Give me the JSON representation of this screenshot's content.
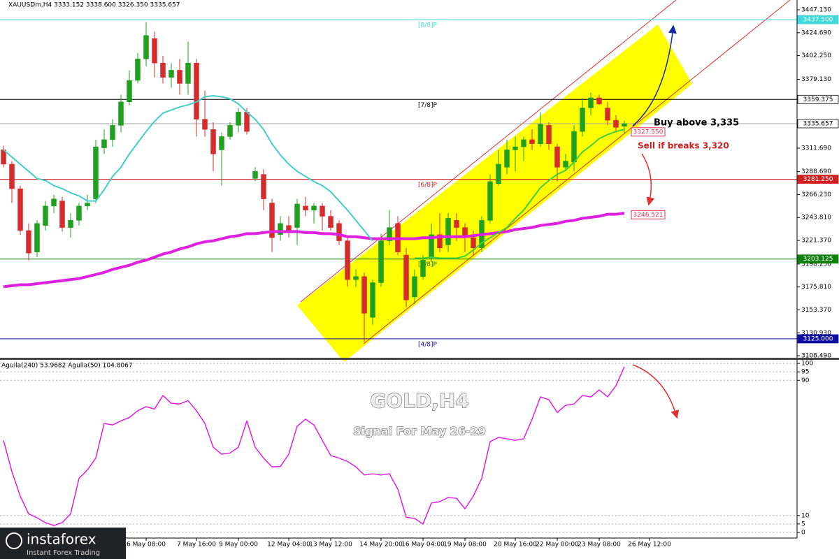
{
  "chart_data": [
    {
      "type": "candlestick",
      "title": "XAUUSDm,H4  3333.152 3338.600 3326.350 3335.657",
      "categories": [
        null,
        null,
        null,
        null,
        null,
        null,
        null,
        null,
        null,
        null,
        null,
        null,
        null,
        null,
        null,
        null,
        null,
        "6 May 08:00",
        null,
        null,
        null,
        null,
        null,
        "7 May 16:00",
        null,
        null,
        null,
        null,
        "9 May 00:00",
        null,
        null,
        null,
        null,
        null,
        "12 May 04:00",
        null,
        null,
        null,
        null,
        "13 May 12:00",
        null,
        null,
        null,
        null,
        null,
        "14 May 20:00",
        null,
        null,
        null,
        null,
        "16 May 04:00",
        null,
        null,
        null,
        null,
        "19 May 08:00",
        null,
        null,
        null,
        null,
        null,
        "20 May 16:00",
        null,
        null,
        null,
        null,
        "22 May 00:00",
        null,
        null,
        null,
        null,
        "23 May 08:00",
        null,
        null,
        null,
        null,
        null,
        "26 May 12:00"
      ],
      "open": [
        3310,
        3296,
        3272,
        3231,
        3210,
        3236,
        3255,
        3260,
        3234,
        3241,
        3255,
        3262,
        3312,
        3320,
        3334,
        3357,
        3378,
        3399,
        3419,
        3395,
        3381,
        3388,
        3375,
        3395,
        3340,
        3330,
        3310,
        3323,
        3334,
        3347,
        3282,
        3286,
        3258,
        3227,
        3236,
        3234,
        3255,
        3251,
        3255,
        3245,
        3238,
        3221,
        3183,
        3186,
        3146,
        3180,
        3221,
        3238,
        3207,
        3166,
        3186,
        3204,
        3227,
        3217,
        3241,
        3234,
        3224,
        3214,
        3241,
        3277,
        3293,
        3310,
        3313,
        3320,
        3316,
        3334,
        3313,
        3293,
        3298,
        3328,
        3351,
        3361,
        3351,
        3339,
        3333.152,
        null,
        null,
        null
      ],
      "high": [
        3314,
        3299,
        3275,
        3238,
        3241,
        3260,
        3266,
        3264,
        3248,
        3258,
        3266,
        3320,
        3330,
        3340,
        3364,
        3388,
        3405,
        3435,
        3426,
        3402,
        3395,
        3399,
        3416,
        3399,
        3368,
        3337,
        3327,
        3337,
        3351,
        3351,
        3293,
        3291,
        3262,
        3245,
        3245,
        3262,
        3264,
        3258,
        3258,
        3251,
        3241,
        3224,
        3193,
        3190,
        3183,
        3228,
        3251,
        3245,
        3214,
        3193,
        3207,
        3238,
        3248,
        3248,
        3248,
        3238,
        3231,
        3245,
        3286,
        3310,
        3320,
        3323,
        3323,
        3330,
        3347,
        3337,
        3316,
        3306,
        3334,
        3361,
        3366,
        3364,
        3357,
        3344,
        3338.6,
        null,
        null,
        null
      ],
      "low": [
        3293,
        3258,
        3227,
        3202,
        3205,
        3231,
        3248,
        3230,
        3224,
        3236,
        3251,
        3258,
        3306,
        3313,
        3327,
        3354,
        3375,
        3392,
        3381,
        3375,
        3371,
        3364,
        3364,
        3323,
        3323,
        3289,
        3275,
        3320,
        3327,
        3325,
        3279,
        3251,
        3210,
        3221,
        3224,
        3217,
        3245,
        3238,
        3231,
        3231,
        3217,
        3176,
        3176,
        3122,
        3139,
        3176,
        3217,
        3207,
        3156,
        3159,
        3183,
        3200,
        3210,
        3210,
        3221,
        3210,
        3207,
        3210,
        3238,
        3275,
        3286,
        3289,
        3299,
        3310,
        3313,
        3310,
        3279,
        3289,
        3289,
        3323,
        3344,
        3354,
        3334,
        3327,
        3326.35,
        null,
        null,
        null
      ],
      "close": [
        3296,
        3272,
        3231,
        3209,
        3238,
        3255,
        3262,
        3234,
        3241,
        3255,
        3258,
        3313,
        3320,
        3334,
        3357,
        3378,
        3399,
        3422,
        3395,
        3381,
        3388,
        3375,
        3395,
        3340,
        3330,
        3306,
        3323,
        3334,
        3347,
        3328,
        3289,
        3262,
        3224,
        3238,
        3231,
        3257,
        3251,
        3255,
        3245,
        3234,
        3221,
        3183,
        3186,
        3150,
        3180,
        3221,
        3234,
        3210,
        3163,
        3186,
        3202,
        3227,
        3214,
        3243,
        3234,
        3224,
        3214,
        3241,
        3279,
        3296,
        3310,
        3313,
        3320,
        3316,
        3335,
        3316,
        3293,
        3299,
        3328,
        3351,
        3361,
        3355,
        3339,
        3332,
        3335.657,
        null,
        null,
        null
      ],
      "up_color": "#1fa01f",
      "down_color": "#d92b2b",
      "series": [
        {
          "color": "#e020e0",
          "width": 4,
          "values": [
            3176,
            3177,
            3178,
            3178,
            3179,
            3180,
            3181,
            3182,
            3183,
            3184,
            3186,
            3188,
            3190,
            3193,
            3195,
            3197,
            3200,
            3202,
            3205,
            3208,
            3210,
            3213,
            3215,
            3218,
            3220,
            3221,
            3223,
            3225,
            3226,
            3228,
            3228,
            3229,
            3230,
            3230,
            3230,
            3230,
            3229,
            3229,
            3228,
            3228,
            3227,
            3225,
            3225,
            3224,
            3223,
            3223,
            3223,
            3223,
            3223,
            3223,
            3224,
            3224,
            3225,
            3225,
            3225,
            3225,
            3226,
            3227,
            3228,
            3229,
            3230,
            3232,
            3233,
            3234,
            3236,
            3237,
            3238,
            3240,
            3241,
            3243,
            3244,
            3245,
            3247,
            3247,
            3248,
            null,
            null,
            null
          ]
        },
        {
          "color": "#40d0c8",
          "width": 2,
          "values": [
            3310,
            3303,
            3296,
            3289,
            3282,
            3280,
            3275,
            3272,
            3268,
            3265,
            3260,
            3260,
            3271,
            3284,
            3293,
            3306,
            3317,
            3328,
            3338,
            3346,
            3349,
            3352,
            3354,
            3357,
            3362,
            3363,
            3362,
            3360,
            3355,
            3347,
            3340,
            3330,
            3316,
            3305,
            3296,
            3289,
            3284,
            3279,
            3275,
            3269,
            3260,
            3251,
            3241,
            3231,
            3221,
            null,
            null,
            null,
            null,
            null,
            null,
            null,
            null,
            null,
            null,
            null,
            null,
            null,
            null,
            null,
            null,
            null,
            null,
            null,
            null,
            null,
            null,
            null,
            null,
            null,
            null,
            null,
            null,
            null,
            null,
            null,
            null,
            null
          ]
        },
        {
          "color": "#40d040",
          "width": 2,
          "values": [
            null,
            null,
            null,
            null,
            null,
            null,
            null,
            null,
            null,
            null,
            null,
            null,
            null,
            null,
            null,
            null,
            null,
            null,
            null,
            null,
            null,
            null,
            null,
            null,
            null,
            null,
            null,
            null,
            null,
            null,
            null,
            null,
            null,
            null,
            null,
            null,
            null,
            null,
            null,
            null,
            null,
            null,
            null,
            null,
            null,
            null,
            null,
            null,
            null,
            3204,
            3204,
            3205,
            3204,
            3204,
            3204,
            3206,
            3212,
            3219,
            3224,
            3229,
            3234,
            3243,
            3251,
            3262,
            3273,
            3280,
            3286,
            3290,
            3298,
            3308,
            3314,
            3321,
            3325,
            3328,
            3330,
            null,
            null,
            null
          ]
        }
      ],
      "ylim": [
        3105.8,
        3453.3
      ],
      "yticks": [
        {
          "value": 3447.13,
          "label": "3447.130"
        },
        {
          "value": 3424.69,
          "label": "3424.690"
        },
        {
          "value": 3402.25,
          "label": "3402.250"
        },
        {
          "value": 3379.13,
          "label": "3379.130"
        },
        {
          "value": 3311.69,
          "label": "3311.690"
        },
        {
          "value": 3288.69,
          "label": "3288.690"
        },
        {
          "value": 3266.23,
          "label": "3266.230"
        },
        {
          "value": 3243.81,
          "label": "3243.810"
        },
        {
          "value": 3221.37,
          "label": "3221.370"
        },
        {
          "value": 3198.25,
          "label": "3198.250"
        },
        {
          "value": 3175.81,
          "label": "3175.810"
        },
        {
          "value": 3153.37,
          "label": "3153.370"
        },
        {
          "value": 3130.93,
          "label": "3130.930"
        },
        {
          "value": 3108.49,
          "label": "3108.490"
        }
      ],
      "levels": [
        {
          "label": "[8/8]P",
          "value": 3437.5,
          "value_label": "3437.500",
          "color": "#40d8d8",
          "tag": "filled"
        },
        {
          "label": "[7/8]P",
          "value": 3359.375,
          "value_label": "3359.375",
          "color": "#000000",
          "tag": "outline"
        },
        {
          "value": 3335.657,
          "value_label": "3335.657",
          "color": "#a0a0a0",
          "tag": "outline"
        },
        {
          "label": "[6/8]P",
          "value": 3281.25,
          "value_label": "3281.250",
          "color": "#d02020",
          "tag": "filled"
        },
        {
          "label": "[5/8]P",
          "value": 3203.125,
          "value_label": "3203.125",
          "color": "#108010",
          "tag": "filled"
        },
        {
          "label": "[4/8]P",
          "value": 3125,
          "value_label": "3125.000",
          "color": "#1010a0",
          "tag": "filled"
        }
      ],
      "markers": [
        {
          "value": 3327.55,
          "label": "3327.550",
          "color": "#e03050"
        },
        {
          "value": 3246.521,
          "label": "3246.521",
          "color": "#e03050"
        }
      ],
      "annotations": [
        {
          "text": "Buy above 3,335",
          "color": "#000000"
        },
        {
          "text": "Sell if breaks 3,320",
          "color": "#d02020"
        }
      ]
    },
    {
      "type": "line",
      "title": "Aguila(240) 53.9682  Aguila(50) 104.8067",
      "series": [
        {
          "color": "#e020e0",
          "width": 1.5,
          "values": [
            54.5,
            36,
            21.5,
            11,
            8.7,
            5.8,
            4.1,
            5.8,
            11,
            32,
            37,
            44,
            64.5,
            63.6,
            66,
            68,
            72,
            74.4,
            73,
            81,
            76.4,
            76,
            78,
            72,
            64.5,
            50.4,
            46.3,
            47,
            50.4,
            66,
            50.4,
            44,
            38.8,
            39,
            46.3,
            62.8,
            67,
            63.6,
            54.5,
            45.5,
            44,
            42,
            38.8,
            34,
            34.7,
            34,
            34.7,
            25.6,
            9,
            8.3,
            5,
            17.4,
            18.2,
            20.7,
            20.2,
            14,
            21.5,
            32,
            53.7,
            56.2,
            55.4,
            54.5,
            55.4,
            67,
            80.2,
            78.5,
            71,
            75.2,
            76,
            81,
            80.2,
            84.3,
            80.2,
            86.8,
            98,
            null,
            null,
            null
          ]
        }
      ],
      "ylim": [
        -3.3,
        102.1
      ],
      "yticks": [
        100,
        95,
        90,
        10,
        5,
        0
      ],
      "grid": "dashed"
    }
  ],
  "watermark": {
    "title": "GOLD,H4",
    "subtitle": "Signal For May 26-29"
  },
  "logo": {
    "name": "instaforex",
    "tagline": "Instant Forex Trading"
  }
}
